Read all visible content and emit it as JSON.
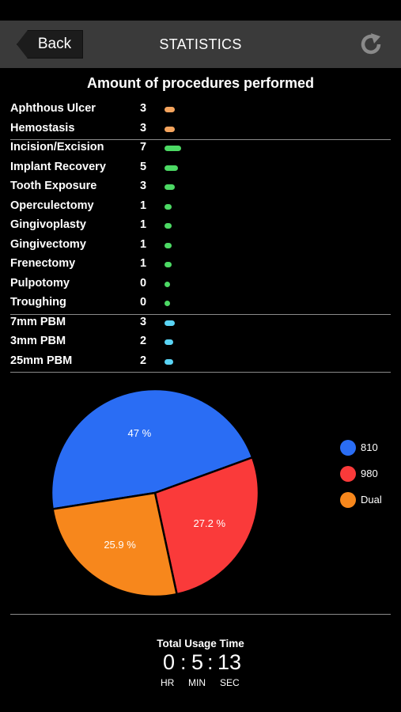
{
  "header": {
    "back_label": "Back",
    "title": "STATISTICS",
    "refresh_icon": "refresh-icon"
  },
  "procedures": {
    "title": "Amount of procedures performed",
    "groups": [
      {
        "color": "#f4a45d",
        "items": [
          {
            "label": "Aphthous Ulcer",
            "count": "3"
          },
          {
            "label": "Hemostasis",
            "count": "3"
          }
        ]
      },
      {
        "color": "#4cd964",
        "items": [
          {
            "label": "Incision/Excision",
            "count": "7"
          },
          {
            "label": "Implant Recovery",
            "count": "5"
          },
          {
            "label": "Tooth Exposure",
            "count": "3"
          },
          {
            "label": "Operculectomy",
            "count": "1"
          },
          {
            "label": "Gingivoplasty",
            "count": "1"
          },
          {
            "label": "Gingivectomy",
            "count": "1"
          },
          {
            "label": "Frenectomy",
            "count": "1"
          },
          {
            "label": "Pulpotomy",
            "count": "0"
          },
          {
            "label": "Troughing",
            "count": "0"
          }
        ]
      },
      {
        "color": "#5ad4f5",
        "items": [
          {
            "label": "7mm PBM",
            "count": "3"
          },
          {
            "label": "3mm PBM",
            "count": "2"
          },
          {
            "label": "25mm PBM",
            "count": "2"
          }
        ]
      }
    ]
  },
  "chart_data": {
    "type": "pie",
    "slices": [
      {
        "name": "810",
        "value": 47,
        "label": "47 %",
        "color": "#2a6df4"
      },
      {
        "name": "980",
        "value": 27.2,
        "label": "27.2 %",
        "color": "#fa3a3a"
      },
      {
        "name": "Dual",
        "value": 25.9,
        "label": "25.9 %",
        "color": "#f7871c"
      }
    ],
    "legend_position": "right"
  },
  "usage": {
    "title": "Total Usage Time",
    "hours": "0",
    "minutes": "5",
    "seconds": "13",
    "separator": ":",
    "hr_label": "HR",
    "min_label": "MIN",
    "sec_label": "SEC"
  }
}
